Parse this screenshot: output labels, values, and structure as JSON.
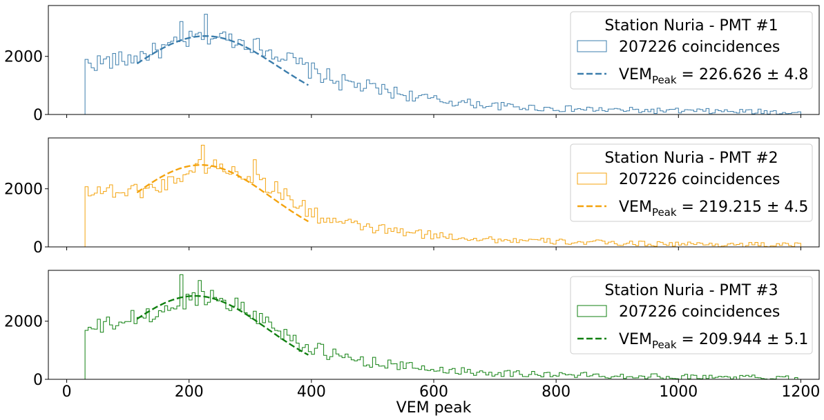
{
  "chart_data": {
    "type": "histogram",
    "x_range": [
      -30,
      1230
    ],
    "x_ticks": [
      0,
      200,
      400,
      600,
      800,
      1000,
      1200
    ],
    "x_tick_labels": [
      "0",
      "200",
      "400",
      "600",
      "800",
      "1000",
      "1200"
    ],
    "xlabel": "VEM peak",
    "y_ticks": [
      0,
      2000
    ],
    "y_tick_labels": [
      "0",
      "2000"
    ],
    "bin_range": [
      30,
      1200
    ],
    "bin_width": 5,
    "panels": [
      {
        "legend_title": "Station Nuria - PMT #1",
        "hist_label": "207226 coincidences",
        "fit_prefix": "VEM",
        "fit_sub": "Peak",
        "fit_value": " = 226.626 ± 4.8",
        "color": "#3b7dac",
        "ylim": [
          0,
          3750
        ],
        "fit": {
          "mu": 226.626,
          "amp": 2700,
          "sigma": 120,
          "x_range": [
            115,
            395
          ]
        },
        "hist": {
          "anchor_x": [
            30,
            100,
            150,
            200,
            220,
            250,
            300,
            350,
            400,
            450,
            500,
            550,
            600,
            700,
            800,
            900,
            1000,
            1100,
            1200
          ],
          "anchor_y": [
            1750,
            1900,
            2200,
            2550,
            2700,
            2680,
            2450,
            2050,
            1500,
            1100,
            900,
            700,
            500,
            300,
            200,
            150,
            120,
            100,
            80
          ],
          "noise_amp": 300,
          "spikes": [
            {
              "x": 225,
              "y": 3450
            },
            {
              "x": 185,
              "y": 3200
            }
          ]
        }
      },
      {
        "legend_title": "Station Nuria - PMT #2",
        "hist_label": "207226 coincidences",
        "fit_prefix": "VEM",
        "fit_sub": "Peak",
        "fit_value": " = 219.215 ± 4.5",
        "color": "#f4a30e",
        "ylim": [
          0,
          3750
        ],
        "fit": {
          "mu": 219.215,
          "amp": 2820,
          "sigma": 115,
          "x_range": [
            115,
            395
          ]
        },
        "hist": {
          "anchor_x": [
            30,
            100,
            150,
            200,
            220,
            250,
            300,
            350,
            400,
            450,
            500,
            550,
            600,
            700,
            800,
            900,
            1000,
            1100,
            1200
          ],
          "anchor_y": [
            2000,
            1900,
            2050,
            2600,
            2800,
            2750,
            2450,
            1900,
            1150,
            800,
            650,
            500,
            400,
            250,
            180,
            130,
            100,
            80,
            60
          ],
          "noise_amp": 280,
          "spikes": [
            {
              "x": 220,
              "y": 3500
            },
            {
              "x": 305,
              "y": 3000
            }
          ]
        }
      },
      {
        "legend_title": "Station Nuria - PMT #3",
        "hist_label": "207226 coincidences",
        "fit_prefix": "VEM",
        "fit_sub": "Peak",
        "fit_value": " = 209.944 ± 5.1",
        "color": "#108010",
        "ylim": [
          0,
          3750
        ],
        "fit": {
          "mu": 209.944,
          "amp": 2870,
          "sigma": 118,
          "x_range": [
            115,
            395
          ]
        },
        "hist": {
          "anchor_x": [
            30,
            100,
            150,
            200,
            220,
            250,
            300,
            350,
            400,
            450,
            500,
            550,
            600,
            700,
            800,
            900,
            1000,
            1100,
            1200
          ],
          "anchor_y": [
            1650,
            2050,
            2250,
            2750,
            2850,
            2800,
            2350,
            1650,
            1050,
            750,
            600,
            450,
            350,
            220,
            160,
            120,
            90,
            70,
            50
          ],
          "noise_amp": 300,
          "spikes": [
            {
              "x": 185,
              "y": 3600
            },
            {
              "x": 215,
              "y": 3400
            }
          ]
        }
      }
    ]
  }
}
